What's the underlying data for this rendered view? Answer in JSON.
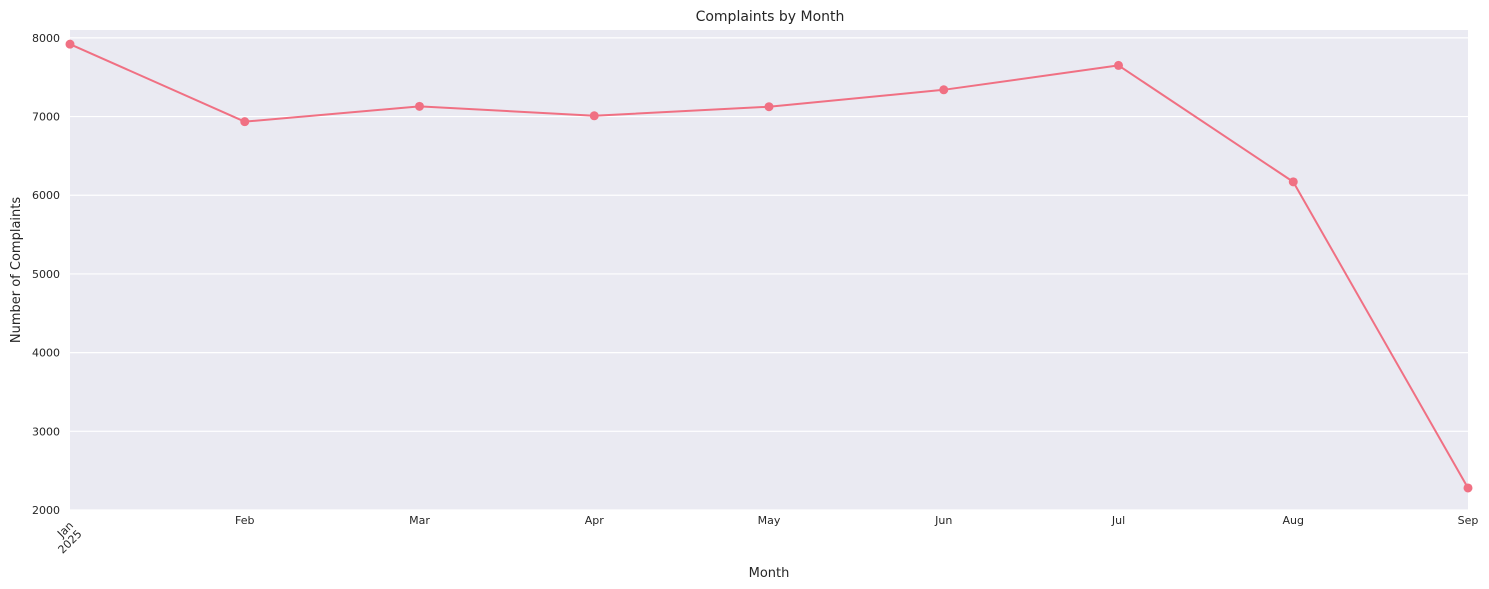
{
  "chart_data": {
    "type": "line",
    "title": "Complaints by Month",
    "xlabel": "Month",
    "ylabel": "Number of Complaints",
    "categories": [
      "2025-01",
      "2025-02",
      "2025-03",
      "2025-04",
      "2025-05",
      "2025-06",
      "2025-07",
      "2025-08",
      "2025-09"
    ],
    "x_tick_labels": [
      "Jan\n2025",
      "Feb",
      "Mar",
      "Apr",
      "May",
      "Jun",
      "Jul",
      "Aug",
      "Sep"
    ],
    "values": [
      7920,
      6935,
      7130,
      7010,
      7125,
      7340,
      7650,
      6170,
      2280
    ],
    "ylim": [
      2000,
      8100
    ],
    "yticks": [
      2000,
      3000,
      4000,
      5000,
      6000,
      7000,
      8000
    ],
    "grid": "horizontal",
    "legend": "none",
    "colors": {
      "line": "#f07083",
      "plot_background": "#eaeaf2",
      "grid": "#ffffff",
      "text": "#262626"
    }
  }
}
